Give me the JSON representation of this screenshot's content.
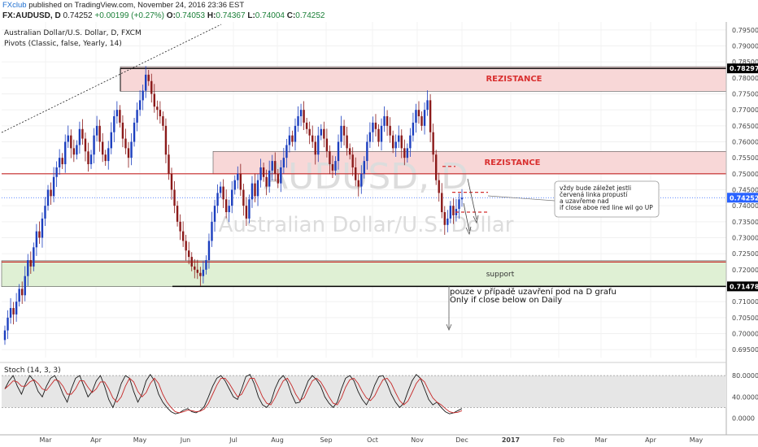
{
  "header": {
    "brand": "FXclub",
    "published": " published on TradingView.com, November 24, 2016 23:36 EST",
    "symbol": "FX:AUDUSD, D",
    "price_text": "0.74252",
    "change_text": "+0.00199 (+0.27%)",
    "ohlc_open_label": "O:",
    "ohlc_open": "0.74053",
    "ohlc_high_label": "H:",
    "ohlc_high": "0.74367",
    "ohlc_low_label": "L:",
    "ohlc_low": "0.74004",
    "ohlc_close_label": "C:",
    "ohlc_close": "0.74252"
  },
  "chart_data": {
    "type": "candlestick",
    "title": "Australian Dollar/U.S. Dollar, D, FXCM",
    "subtitle": "Pivots (Classic, false, Yearly, 14)",
    "watermark_symbol": "AUDUSD, D",
    "watermark_name": "Australian Dollar/U.S. Dollar",
    "ylim": [
      0.6925,
      0.7975
    ],
    "y_ticks": [
      "0.79500",
      "0.79000",
      "0.78500",
      "0.78000",
      "0.77500",
      "0.77000",
      "0.76500",
      "0.76000",
      "0.75500",
      "0.75000",
      "0.74500",
      "0.74000",
      "0.73500",
      "0.73000",
      "0.72500",
      "0.72000",
      "0.71500",
      "0.71000",
      "0.70500",
      "0.70000",
      "0.69500"
    ],
    "x_ticks": [
      "Mar",
      "Apr",
      "May",
      "Jun",
      "Jul",
      "Aug",
      "Sep",
      "Oct",
      "Nov",
      "Dec",
      "2017",
      "Feb",
      "Mar",
      "Apr",
      "May"
    ],
    "price_markers": [
      {
        "label": "0.78297",
        "value": 0.78297,
        "color": "#000000"
      },
      {
        "label": "0.74252",
        "value": 0.74252,
        "color": "#2962ff"
      },
      {
        "label": "0.71478",
        "value": 0.71478,
        "color": "#000000"
      }
    ],
    "zones": [
      {
        "label": "REZISTANCE",
        "from": 0.7758,
        "to": 0.7835,
        "color": "#f8d7d7",
        "text_color": "#d93030"
      },
      {
        "label": "REZISTANCE",
        "from": 0.75,
        "to": 0.757,
        "color": "#f8d7d7",
        "text_color": "#d93030"
      },
      {
        "label": "support",
        "from": 0.7147,
        "to": 0.7228,
        "color": "#dff0d4",
        "text_color": "#333333"
      }
    ],
    "levels": [
      {
        "value": 0.75,
        "color": "#c62828"
      },
      {
        "value": 0.7224,
        "color": "#c62828"
      },
      {
        "value": 0.71478,
        "color": "#000000"
      }
    ],
    "candles_close": [
      0.701,
      0.705,
      0.708,
      0.706,
      0.71,
      0.714,
      0.712,
      0.718,
      0.723,
      0.721,
      0.727,
      0.732,
      0.73,
      0.736,
      0.74,
      0.745,
      0.743,
      0.749,
      0.752,
      0.755,
      0.753,
      0.76,
      0.762,
      0.758,
      0.756,
      0.759,
      0.764,
      0.761,
      0.757,
      0.753,
      0.756,
      0.762,
      0.765,
      0.76,
      0.756,
      0.754,
      0.758,
      0.763,
      0.768,
      0.77,
      0.766,
      0.761,
      0.758,
      0.755,
      0.76,
      0.766,
      0.77,
      0.773,
      0.776,
      0.781,
      0.779,
      0.775,
      0.771,
      0.77,
      0.768,
      0.765,
      0.756,
      0.75,
      0.745,
      0.74,
      0.735,
      0.732,
      0.729,
      0.726,
      0.724,
      0.721,
      0.72,
      0.719,
      0.718,
      0.72,
      0.723,
      0.729,
      0.735,
      0.74,
      0.744,
      0.746,
      0.742,
      0.738,
      0.74,
      0.745,
      0.748,
      0.75,
      0.745,
      0.74,
      0.736,
      0.742,
      0.747,
      0.743,
      0.748,
      0.752,
      0.749,
      0.746,
      0.751,
      0.754,
      0.75,
      0.747,
      0.752,
      0.755,
      0.759,
      0.762,
      0.76,
      0.765,
      0.768,
      0.77,
      0.766,
      0.764,
      0.762,
      0.76,
      0.756,
      0.762,
      0.764,
      0.761,
      0.757,
      0.753,
      0.751,
      0.754,
      0.76,
      0.765,
      0.762,
      0.758,
      0.756,
      0.752,
      0.748,
      0.746,
      0.75,
      0.754,
      0.76,
      0.763,
      0.766,
      0.764,
      0.76,
      0.765,
      0.768,
      0.765,
      0.762,
      0.758,
      0.76,
      0.762,
      0.758,
      0.755,
      0.758,
      0.762,
      0.766,
      0.77,
      0.768,
      0.765,
      0.77,
      0.773,
      0.763,
      0.756,
      0.748,
      0.744,
      0.738,
      0.734,
      0.736,
      0.74,
      0.737,
      0.739,
      0.742,
      0.7425
    ],
    "annotations": [
      {
        "lines": [
          "vždy bude záležet jestli",
          "červená linka propustí",
          "a uzavřeme nad",
          "if close aboe red line  wil go UP"
        ]
      },
      {
        "lines": [
          "pouze v případě uzavření pod na D grafu",
          "Only if close below on Daily"
        ]
      }
    ],
    "stochastic": {
      "label": "Stoch (14, 3, 3)",
      "ylim": [
        -10,
        100
      ],
      "y_ticks": [
        "80.0000",
        "40.0000",
        "0.0000"
      ],
      "bands": [
        80,
        20
      ],
      "k_values": [
        55,
        70,
        80,
        60,
        45,
        65,
        80,
        70,
        50,
        40,
        60,
        75,
        80,
        65,
        45,
        30,
        55,
        75,
        80,
        60,
        40,
        50,
        70,
        80,
        60,
        35,
        20,
        40,
        65,
        80,
        75,
        50,
        30,
        45,
        70,
        82,
        70,
        45,
        30,
        20,
        12,
        8,
        10,
        15,
        18,
        12,
        10,
        14,
        22,
        40,
        60,
        75,
        80,
        70,
        55,
        40,
        35,
        55,
        78,
        82,
        65,
        40,
        25,
        20,
        30,
        55,
        72,
        80,
        68,
        45,
        28,
        30,
        50,
        70,
        80,
        72,
        60,
        40,
        28,
        20,
        30,
        55,
        75,
        80,
        70,
        50,
        35,
        25,
        40,
        62,
        78,
        80,
        65,
        45,
        30,
        20,
        28,
        50,
        70,
        82,
        75,
        55,
        35,
        25,
        30,
        20,
        12,
        8,
        10,
        14,
        18
      ],
      "d_values": [
        55,
        62,
        70,
        68,
        60,
        60,
        68,
        72,
        65,
        55,
        52,
        62,
        72,
        70,
        60,
        45,
        45,
        55,
        70,
        70,
        58,
        48,
        55,
        68,
        68,
        55,
        38,
        30,
        40,
        60,
        75,
        68,
        50,
        40,
        48,
        65,
        75,
        65,
        45,
        30,
        20,
        12,
        10,
        12,
        15,
        14,
        12,
        13,
        17,
        28,
        45,
        62,
        75,
        75,
        65,
        52,
        40,
        45,
        60,
        75,
        75,
        58,
        40,
        28,
        25,
        38,
        55,
        70,
        75,
        62,
        45,
        33,
        38,
        55,
        70,
        75,
        68,
        55,
        40,
        28,
        25,
        38,
        58,
        72,
        75,
        65,
        50,
        38,
        33,
        42,
        58,
        72,
        75,
        65,
        48,
        33,
        25,
        32,
        48,
        65,
        75,
        68,
        52,
        38,
        30,
        25,
        18,
        12,
        10,
        11,
        14
      ]
    }
  }
}
